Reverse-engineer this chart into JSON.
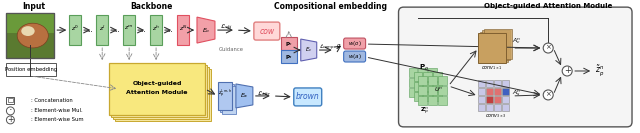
{
  "title_input": "Input",
  "title_backbone": "Backbone",
  "title_comp_emb": "Compositional embedding",
  "title_obj_attn": "Object-guided Attention Module",
  "legend_concat": ": Concatenation",
  "legend_mul": ": Element-wise Mul.",
  "legend_sum": ": Element-wise Sum",
  "label_cow": "cow",
  "label_brown": "brown",
  "label_pos_emb": "Position embedding",
  "label_guidance": "Guidance",
  "color_green_box": "#a8d5a2",
  "color_green_box_dark": "#5a9e5a",
  "color_pink_box": "#f2a0a8",
  "color_pink_dark": "#e05060",
  "color_blue_box": "#a0b8e0",
  "color_blue_dark": "#4070c0",
  "color_yellow_box": "#f5e6a0",
  "color_yellow_dark": "#c8a830",
  "color_bg": "#ffffff",
  "color_border": "#555555",
  "color_arrow": "#333333",
  "color_dashed": "#888888"
}
